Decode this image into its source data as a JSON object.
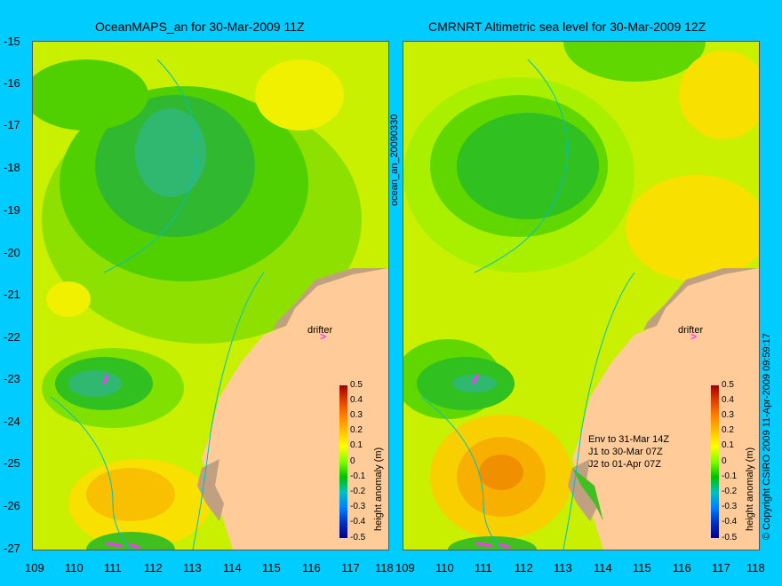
{
  "left_panel": {
    "title": "OceanMAPS_an for 30-Mar-2009 11Z",
    "drifter_label": "drifter",
    "colorbar_title": "height anomaly (m)"
  },
  "right_panel": {
    "title": "CMRNRT Altimetric sea level  for 30-Mar-2009 12Z",
    "side_label": "ocean_an_20090330",
    "drifter_label": "drifter",
    "colorbar_title": "height anomaly (m)",
    "annotation": [
      "Env to 31-Mar 14Z",
      "J1 to 30-Mar 07Z",
      "J2 to 01-Apr 07Z"
    ],
    "copyright": "© Copyright CSIRO 2009   11-Apr-2009 09:59:17"
  },
  "axes": {
    "x_ticks": [
      "109",
      "110",
      "111",
      "112",
      "113",
      "114",
      "115",
      "116",
      "117",
      "118"
    ],
    "y_ticks": [
      "-15",
      "-16",
      "-17",
      "-18",
      "-19",
      "-20",
      "-21",
      "-22",
      "-23",
      "-24",
      "-25",
      "-26",
      "-27"
    ],
    "x_range": [
      109,
      118
    ],
    "y_range": [
      -27,
      -15
    ]
  },
  "colorbar": {
    "ticks": [
      "0.5",
      "0.4",
      "0.3",
      "0.2",
      "0.1",
      "0",
      "-0.1",
      "-0.2",
      "-0.3",
      "-0.4",
      "-0.5"
    ],
    "range": [
      -0.5,
      0.5
    ],
    "colors": [
      "#000080",
      "#0030c0",
      "#0080ff",
      "#00c0c0",
      "#00c000",
      "#80ff00",
      "#ffff00",
      "#ffc000",
      "#ff8000",
      "#e04000",
      "#a00000"
    ]
  },
  "colors": {
    "background": "#00ccff",
    "land": "#ffcc99",
    "coast": "#c0a080",
    "drifter_track": "#ff33ff"
  }
}
